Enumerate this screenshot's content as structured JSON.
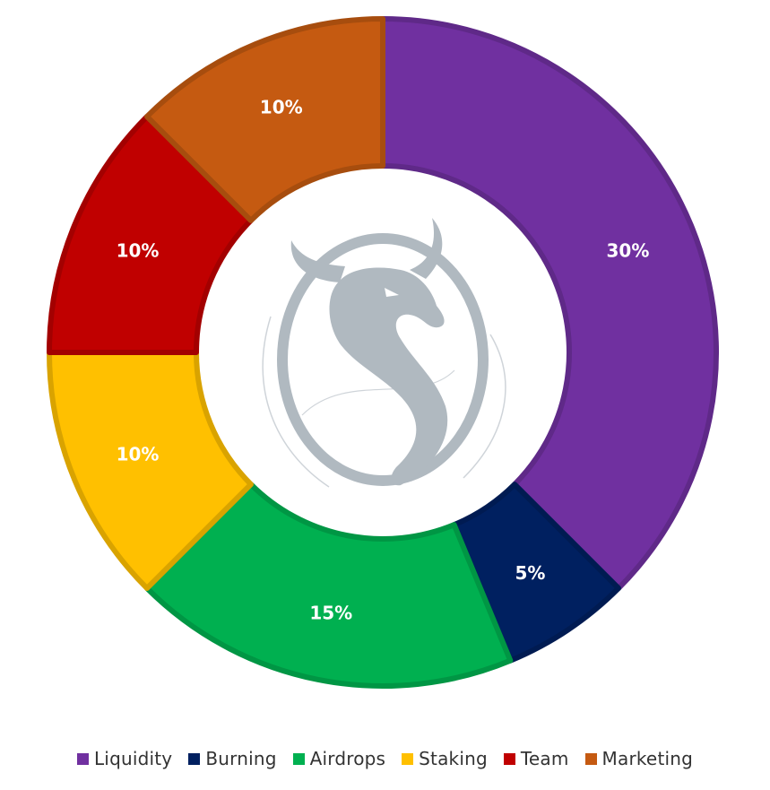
{
  "chart_data": {
    "type": "pie",
    "donut": true,
    "title": "",
    "legend_position": "bottom",
    "categories": [
      "Liquidity",
      "Burning",
      "Airdrops",
      "Staking",
      "Team",
      "Marketing"
    ],
    "values": [
      30,
      5,
      15,
      10,
      10,
      10
    ],
    "value_labels": [
      "30%",
      "5%",
      "15%",
      "10%",
      "10%",
      "10%"
    ],
    "colors": [
      "#7030A0",
      "#002060",
      "#00B050",
      "#FFC000",
      "#C00000",
      "#C55A11"
    ],
    "center_emblem": "bull-emblem-icon"
  }
}
